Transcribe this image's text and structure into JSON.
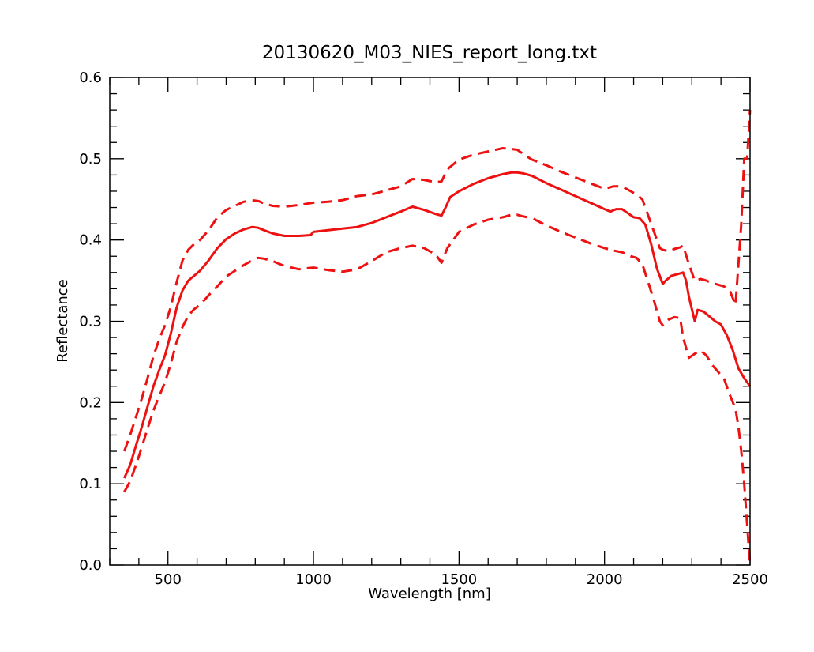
{
  "chart_data": {
    "type": "line",
    "title": "20130620_M03_NIES_report_long.txt",
    "xlabel": "Wavelength [nm]",
    "ylabel": "Reflectance",
    "xlim": [
      300,
      2500
    ],
    "ylim": [
      0.0,
      0.6
    ],
    "grid": false,
    "legend": "none",
    "x_ticks": [
      {
        "value": 500,
        "label": "500"
      },
      {
        "value": 1000,
        "label": "1000"
      },
      {
        "value": 1500,
        "label": "1500"
      },
      {
        "value": 2000,
        "label": "2000"
      },
      {
        "value": 2500,
        "label": "2500"
      }
    ],
    "y_ticks": [
      {
        "value": 0.0,
        "label": "0.0"
      },
      {
        "value": 0.1,
        "label": "0.1"
      },
      {
        "value": 0.2,
        "label": "0.2"
      },
      {
        "value": 0.3,
        "label": "0.3"
      },
      {
        "value": 0.4,
        "label": "0.4"
      },
      {
        "value": 0.5,
        "label": "0.5"
      },
      {
        "value": 0.6,
        "label": "0.6"
      }
    ],
    "series": [
      {
        "style": "solid",
        "color": "#ee1111",
        "x": [
          350,
          370,
          390,
          410,
          430,
          450,
          470,
          490,
          510,
          530,
          550,
          570,
          590,
          610,
          640,
          670,
          700,
          730,
          760,
          790,
          810,
          830,
          860,
          900,
          950,
          990,
          1000,
          1050,
          1100,
          1150,
          1200,
          1250,
          1300,
          1340,
          1380,
          1420,
          1440,
          1455,
          1470,
          1500,
          1550,
          1600,
          1650,
          1680,
          1700,
          1720,
          1750,
          1800,
          1850,
          1900,
          1950,
          2000,
          2020,
          2040,
          2060,
          2080,
          2100,
          2120,
          2140,
          2160,
          2180,
          2200,
          2210,
          2230,
          2250,
          2270,
          2280,
          2290,
          2300,
          2310,
          2320,
          2340,
          2360,
          2380,
          2400,
          2420,
          2440,
          2460,
          2480,
          2500
        ],
        "y": [
          0.107,
          0.123,
          0.147,
          0.17,
          0.195,
          0.22,
          0.24,
          0.258,
          0.285,
          0.317,
          0.338,
          0.35,
          0.356,
          0.362,
          0.375,
          0.39,
          0.401,
          0.408,
          0.413,
          0.416,
          0.415,
          0.412,
          0.408,
          0.405,
          0.405,
          0.406,
          0.41,
          0.412,
          0.414,
          0.416,
          0.421,
          0.428,
          0.435,
          0.441,
          0.437,
          0.432,
          0.43,
          0.441,
          0.453,
          0.46,
          0.469,
          0.476,
          0.481,
          0.483,
          0.483,
          0.482,
          0.479,
          0.47,
          0.462,
          0.454,
          0.446,
          0.438,
          0.435,
          0.438,
          0.438,
          0.433,
          0.428,
          0.427,
          0.419,
          0.395,
          0.365,
          0.346,
          0.35,
          0.356,
          0.358,
          0.36,
          0.35,
          0.33,
          0.315,
          0.3,
          0.314,
          0.312,
          0.306,
          0.3,
          0.296,
          0.283,
          0.265,
          0.242,
          0.23,
          0.22
        ]
      },
      {
        "style": "dashed",
        "color": "#ee1111",
        "x": [
          350,
          370,
          390,
          410,
          430,
          450,
          470,
          490,
          510,
          530,
          550,
          570,
          590,
          610,
          640,
          670,
          700,
          730,
          760,
          790,
          810,
          830,
          860,
          900,
          950,
          1000,
          1050,
          1100,
          1150,
          1200,
          1250,
          1300,
          1340,
          1380,
          1420,
          1440,
          1460,
          1480,
          1500,
          1550,
          1600,
          1650,
          1680,
          1700,
          1720,
          1750,
          1800,
          1850,
          1900,
          1950,
          2000,
          2030,
          2060,
          2090,
          2110,
          2130,
          2150,
          2170,
          2190,
          2200,
          2220,
          2240,
          2260,
          2270,
          2290,
          2310,
          2330,
          2350,
          2370,
          2390,
          2410,
          2430,
          2450,
          2470,
          2480,
          2490,
          2500
        ],
        "y": [
          0.14,
          0.16,
          0.182,
          0.205,
          0.23,
          0.257,
          0.278,
          0.295,
          0.318,
          0.348,
          0.375,
          0.388,
          0.395,
          0.4,
          0.412,
          0.428,
          0.437,
          0.442,
          0.447,
          0.449,
          0.448,
          0.445,
          0.442,
          0.441,
          0.443,
          0.446,
          0.447,
          0.449,
          0.454,
          0.456,
          0.461,
          0.466,
          0.475,
          0.474,
          0.471,
          0.472,
          0.487,
          0.493,
          0.499,
          0.505,
          0.509,
          0.513,
          0.512,
          0.511,
          0.506,
          0.499,
          0.492,
          0.484,
          0.477,
          0.47,
          0.463,
          0.466,
          0.466,
          0.46,
          0.456,
          0.45,
          0.43,
          0.41,
          0.39,
          0.388,
          0.386,
          0.389,
          0.391,
          0.393,
          0.37,
          0.35,
          0.352,
          0.35,
          0.347,
          0.345,
          0.343,
          0.338,
          0.32,
          0.42,
          0.5,
          0.5,
          0.56
        ]
      },
      {
        "style": "dashed",
        "color": "#ee1111",
        "x": [
          350,
          370,
          390,
          410,
          430,
          450,
          470,
          490,
          510,
          530,
          550,
          570,
          590,
          610,
          640,
          670,
          700,
          730,
          760,
          790,
          810,
          830,
          860,
          900,
          950,
          1000,
          1050,
          1100,
          1150,
          1200,
          1250,
          1300,
          1340,
          1380,
          1420,
          1440,
          1460,
          1480,
          1500,
          1550,
          1600,
          1650,
          1680,
          1700,
          1720,
          1750,
          1800,
          1850,
          1900,
          1950,
          2000,
          2030,
          2060,
          2090,
          2110,
          2130,
          2150,
          2170,
          2190,
          2200,
          2220,
          2240,
          2260,
          2270,
          2290,
          2310,
          2330,
          2350,
          2370,
          2390,
          2410,
          2430,
          2450,
          2460,
          2470,
          2480,
          2490,
          2500
        ],
        "y": [
          0.09,
          0.103,
          0.123,
          0.145,
          0.168,
          0.19,
          0.208,
          0.225,
          0.248,
          0.275,
          0.293,
          0.307,
          0.315,
          0.32,
          0.332,
          0.343,
          0.355,
          0.362,
          0.369,
          0.375,
          0.378,
          0.377,
          0.374,
          0.368,
          0.364,
          0.366,
          0.363,
          0.361,
          0.364,
          0.374,
          0.385,
          0.39,
          0.393,
          0.39,
          0.382,
          0.372,
          0.39,
          0.4,
          0.41,
          0.419,
          0.425,
          0.428,
          0.431,
          0.431,
          0.429,
          0.427,
          0.418,
          0.41,
          0.403,
          0.396,
          0.39,
          0.387,
          0.385,
          0.38,
          0.378,
          0.37,
          0.348,
          0.325,
          0.3,
          0.295,
          0.302,
          0.305,
          0.304,
          0.28,
          0.255,
          0.26,
          0.264,
          0.258,
          0.246,
          0.238,
          0.23,
          0.21,
          0.192,
          0.17,
          0.14,
          0.1,
          0.05,
          0.0
        ]
      }
    ]
  }
}
